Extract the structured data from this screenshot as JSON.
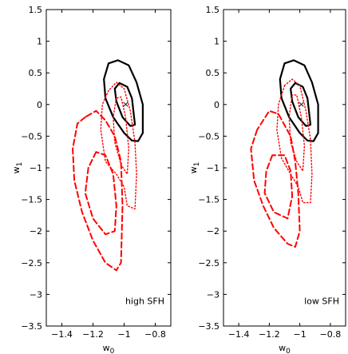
{
  "chart_data": [
    {
      "type": "contour",
      "xlabel": "w",
      "xlabel_sub": "0",
      "ylabel": "w",
      "ylabel_sub": "1",
      "xlim": [
        -1.5,
        -0.7
      ],
      "ylim": [
        -3.5,
        1.5
      ],
      "xticks": [
        -1.4,
        -1.2,
        -1,
        -0.8
      ],
      "xtick_labels": [
        "−1.4",
        "−1.2",
        "−1",
        "−0.8"
      ],
      "yticks": [
        1.5,
        1,
        0.5,
        0,
        -0.5,
        -1,
        -1.5,
        -2,
        -2.5,
        -3,
        -3.5
      ],
      "ytick_labels": [
        "1.5",
        "1",
        "0.5",
        "0",
        "−0.5",
        "−1",
        "−1.5",
        "−2",
        "−2.5",
        "−3",
        "−3.5"
      ],
      "annotation": "high SFH",
      "markers": [
        {
          "x": -0.99,
          "y": 0.0,
          "symbol": "×",
          "color": "#ff6a6a"
        }
      ],
      "series": [
        {
          "style": "solid",
          "color": "#000000",
          "contours": [
            [
              [
                -0.88,
                -0.45
              ],
              [
                -0.91,
                -0.58
              ],
              [
                -0.95,
                -0.57
              ],
              [
                -1.0,
                -0.45
              ],
              [
                -1.07,
                -0.2
              ],
              [
                -1.12,
                0.1
              ],
              [
                -1.13,
                0.4
              ],
              [
                -1.1,
                0.65
              ],
              [
                -1.04,
                0.7
              ],
              [
                -0.97,
                0.62
              ],
              [
                -0.92,
                0.35
              ],
              [
                -0.88,
                0.0
              ],
              [
                -0.88,
                -0.45
              ]
            ],
            [
              [
                -0.93,
                -0.32
              ],
              [
                -0.96,
                -0.34
              ],
              [
                -1.01,
                -0.2
              ],
              [
                -1.05,
                0.05
              ],
              [
                -1.06,
                0.25
              ],
              [
                -1.03,
                0.34
              ],
              [
                -0.98,
                0.28
              ],
              [
                -0.95,
                0.1
              ],
              [
                -0.93,
                -0.32
              ]
            ]
          ]
        },
        {
          "style": "dashed",
          "color": "#ff0000",
          "contours": [
            [
              [
                -1.25,
                -0.2
              ],
              [
                -1.3,
                -0.3
              ],
              [
                -1.33,
                -0.7
              ],
              [
                -1.32,
                -1.2
              ],
              [
                -1.27,
                -1.7
              ],
              [
                -1.2,
                -2.15
              ],
              [
                -1.12,
                -2.5
              ],
              [
                -1.05,
                -2.62
              ],
              [
                -1.02,
                -2.5
              ],
              [
                -1.01,
                -1.6
              ],
              [
                -1.02,
                -0.9
              ],
              [
                -1.06,
                -0.5
              ],
              [
                -1.12,
                -0.25
              ],
              [
                -1.18,
                -0.1
              ],
              [
                -1.25,
                -0.2
              ]
            ],
            [
              [
                -1.18,
                -0.75
              ],
              [
                -1.23,
                -1.0
              ],
              [
                -1.25,
                -1.4
              ],
              [
                -1.2,
                -1.8
              ],
              [
                -1.12,
                -2.05
              ],
              [
                -1.06,
                -2.0
              ],
              [
                -1.05,
                -1.6
              ],
              [
                -1.07,
                -1.1
              ],
              [
                -1.12,
                -0.8
              ],
              [
                -1.18,
                -0.75
              ]
            ]
          ]
        },
        {
          "style": "dotted",
          "color": "#ff0000",
          "contours": [
            [
              [
                -1.1,
                0.22
              ],
              [
                -1.14,
                0.0
              ],
              [
                -1.15,
                -0.4
              ],
              [
                -1.12,
                -0.9
              ],
              [
                -1.05,
                -1.1
              ],
              [
                -1.0,
                -1.3
              ],
              [
                -0.98,
                -1.6
              ],
              [
                -0.93,
                -1.65
              ],
              [
                -0.92,
                -1.1
              ],
              [
                -0.93,
                -0.6
              ],
              [
                -0.96,
                -0.1
              ],
              [
                -1.0,
                0.25
              ],
              [
                -1.05,
                0.35
              ],
              [
                -1.1,
                0.22
              ]
            ],
            [
              [
                -1.05,
                0.1
              ],
              [
                -1.07,
                -0.2
              ],
              [
                -1.06,
                -0.6
              ],
              [
                -1.02,
                -0.95
              ],
              [
                -0.98,
                -1.1
              ],
              [
                -0.97,
                -0.7
              ],
              [
                -0.99,
                -0.2
              ],
              [
                -1.02,
                0.12
              ],
              [
                -1.05,
                0.1
              ]
            ]
          ]
        }
      ]
    },
    {
      "type": "contour",
      "xlabel": "w",
      "xlabel_sub": "0",
      "ylabel": "w",
      "ylabel_sub": "1",
      "xlim": [
        -1.5,
        -0.7
      ],
      "ylim": [
        -3.5,
        1.5
      ],
      "xticks": [
        -1.4,
        -1.2,
        -1,
        -0.8
      ],
      "xtick_labels": [
        "−1.4",
        "−1.2",
        "−1",
        "−0.8"
      ],
      "yticks": [
        1.5,
        1,
        0.5,
        0,
        -0.5,
        -1,
        -1.5,
        -2,
        -2.5,
        -3,
        -3.5
      ],
      "ytick_labels": [
        "1.5",
        "1",
        "0.5",
        "0",
        "−0.5",
        "−1",
        "−1.5",
        "−2",
        "−2.5",
        "−3",
        "−3.5"
      ],
      "annotation": "low SFH",
      "markers": [
        {
          "x": -0.99,
          "y": 0.0,
          "symbol": "×",
          "color": "#ff6a6a"
        }
      ],
      "series": [
        {
          "style": "solid",
          "color": "#000000",
          "contours": [
            [
              [
                -0.88,
                -0.45
              ],
              [
                -0.91,
                -0.58
              ],
              [
                -0.95,
                -0.57
              ],
              [
                -1.0,
                -0.45
              ],
              [
                -1.07,
                -0.2
              ],
              [
                -1.12,
                0.1
              ],
              [
                -1.13,
                0.4
              ],
              [
                -1.1,
                0.65
              ],
              [
                -1.04,
                0.7
              ],
              [
                -0.97,
                0.62
              ],
              [
                -0.92,
                0.35
              ],
              [
                -0.88,
                0.0
              ],
              [
                -0.88,
                -0.45
              ]
            ],
            [
              [
                -0.93,
                -0.32
              ],
              [
                -0.96,
                -0.34
              ],
              [
                -1.01,
                -0.2
              ],
              [
                -1.05,
                0.05
              ],
              [
                -1.06,
                0.25
              ],
              [
                -1.03,
                0.34
              ],
              [
                -0.98,
                0.28
              ],
              [
                -0.95,
                0.1
              ],
              [
                -0.93,
                -0.32
              ]
            ]
          ]
        },
        {
          "style": "dashed",
          "color": "#ff0000",
          "contours": [
            [
              [
                -1.28,
                -0.4
              ],
              [
                -1.32,
                -0.7
              ],
              [
                -1.3,
                -1.2
              ],
              [
                -1.24,
                -1.6
              ],
              [
                -1.17,
                -1.95
              ],
              [
                -1.08,
                -2.2
              ],
              [
                -1.03,
                -2.25
              ],
              [
                -1.0,
                -2.0
              ],
              [
                -1.01,
                -1.4
              ],
              [
                -1.03,
                -0.9
              ],
              [
                -1.06,
                -0.5
              ],
              [
                -1.14,
                -0.15
              ],
              [
                -1.2,
                -0.1
              ],
              [
                -1.28,
                -0.4
              ]
            ],
            [
              [
                -1.18,
                -0.8
              ],
              [
                -1.22,
                -1.05
              ],
              [
                -1.23,
                -1.4
              ],
              [
                -1.17,
                -1.7
              ],
              [
                -1.08,
                -1.8
              ],
              [
                -1.05,
                -1.45
              ],
              [
                -1.06,
                -1.05
              ],
              [
                -1.1,
                -0.8
              ],
              [
                -1.18,
                -0.8
              ]
            ]
          ]
        },
        {
          "style": "dotted",
          "color": "#ff0000",
          "contours": [
            [
              [
                -1.1,
                0.3
              ],
              [
                -1.14,
                0.0
              ],
              [
                -1.15,
                -0.4
              ],
              [
                -1.12,
                -0.85
              ],
              [
                -1.06,
                -1.1
              ],
              [
                -1.01,
                -1.3
              ],
              [
                -0.98,
                -1.55
              ],
              [
                -0.93,
                -1.55
              ],
              [
                -0.92,
                -1.1
              ],
              [
                -0.93,
                -0.55
              ],
              [
                -0.96,
                -0.1
              ],
              [
                -1.0,
                0.3
              ],
              [
                -1.05,
                0.4
              ],
              [
                -1.1,
                0.3
              ]
            ],
            [
              [
                -1.05,
                0.15
              ],
              [
                -1.07,
                -0.2
              ],
              [
                -1.06,
                -0.6
              ],
              [
                -1.02,
                -0.9
              ],
              [
                -0.98,
                -1.05
              ],
              [
                -0.97,
                -0.65
              ],
              [
                -0.99,
                -0.2
              ],
              [
                -1.02,
                0.15
              ],
              [
                -1.05,
                0.15
              ]
            ]
          ]
        }
      ]
    }
  ]
}
